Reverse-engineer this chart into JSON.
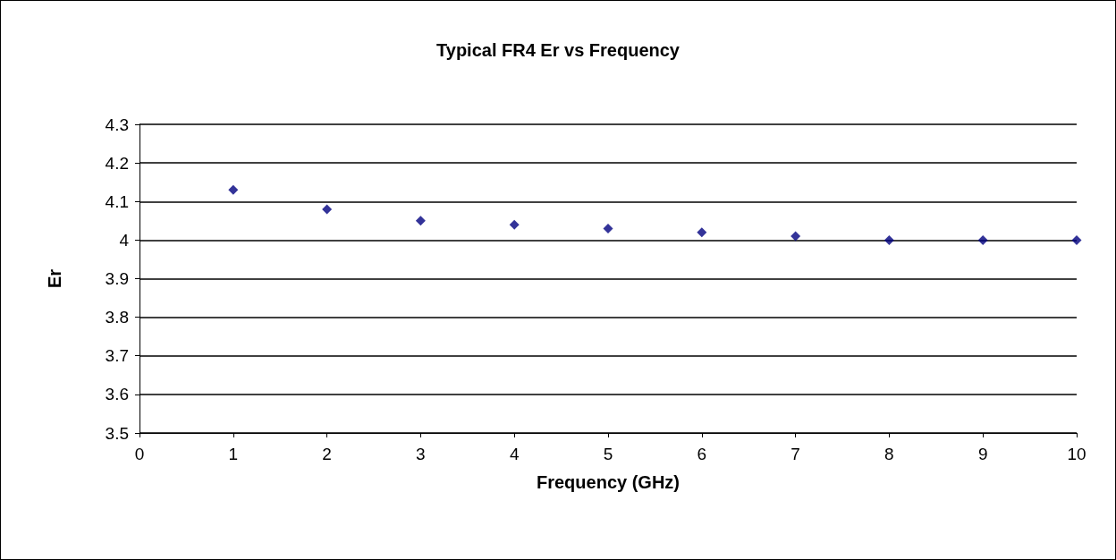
{
  "chart_data": {
    "type": "scatter",
    "title": "Typical FR4 Er vs Frequency",
    "xlabel": "Frequency (GHz)",
    "ylabel": "Er",
    "x": [
      1,
      2,
      3,
      4,
      5,
      6,
      7,
      8,
      9,
      10
    ],
    "series": [
      {
        "color": "#000080",
        "values": [
          4.13,
          4.08,
          4.05,
          4.04,
          4.03,
          4.02,
          4.01,
          4.0,
          4.0,
          4.0
        ]
      }
    ],
    "xlim": [
      0,
      10
    ],
    "xticks": [
      0,
      1,
      2,
      3,
      4,
      5,
      6,
      7,
      8,
      9,
      10
    ],
    "ylim": [
      3.5,
      4.3
    ],
    "yticks": [
      3.5,
      3.6,
      3.7,
      3.8,
      3.9,
      4,
      4.1,
      4.2,
      4.3
    ],
    "grid": "y",
    "marker": "diamond"
  }
}
